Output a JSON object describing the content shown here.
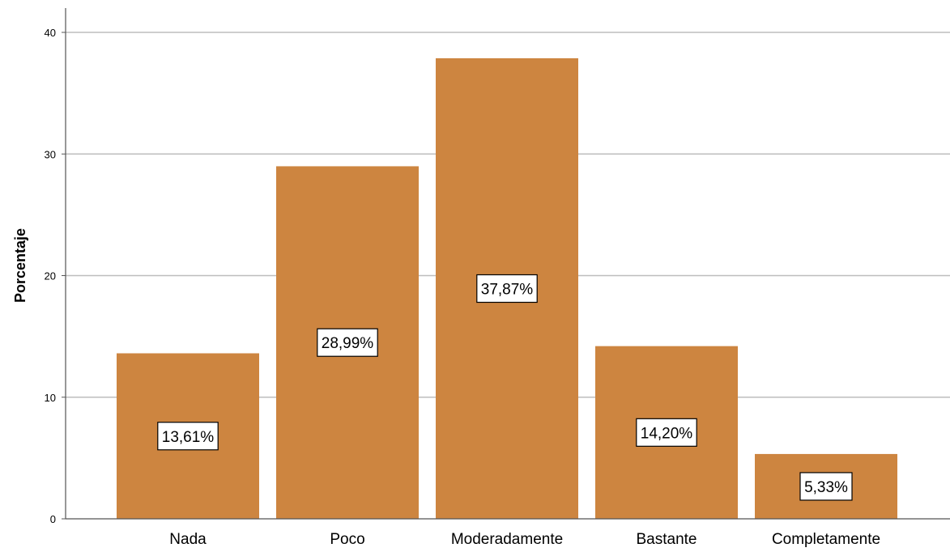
{
  "chart_data": {
    "type": "bar",
    "categories": [
      "Nada",
      "Poco",
      "Moderadamente",
      "Bastante",
      "Completamente"
    ],
    "values": [
      13.61,
      28.99,
      37.87,
      14.2,
      5.33
    ],
    "data_labels": [
      "13,61%",
      "28,99%",
      "37,87%",
      "14,20%",
      "5,33%"
    ],
    "title": "",
    "xlabel": "",
    "ylabel": "Porcentaje",
    "ylim": [
      0,
      42
    ],
    "yticks": [
      0,
      10,
      20,
      30,
      40
    ],
    "grid": true,
    "colors": {
      "bar": "#cd8540",
      "grid": "#bdbdbd",
      "axis": "#555555"
    }
  }
}
